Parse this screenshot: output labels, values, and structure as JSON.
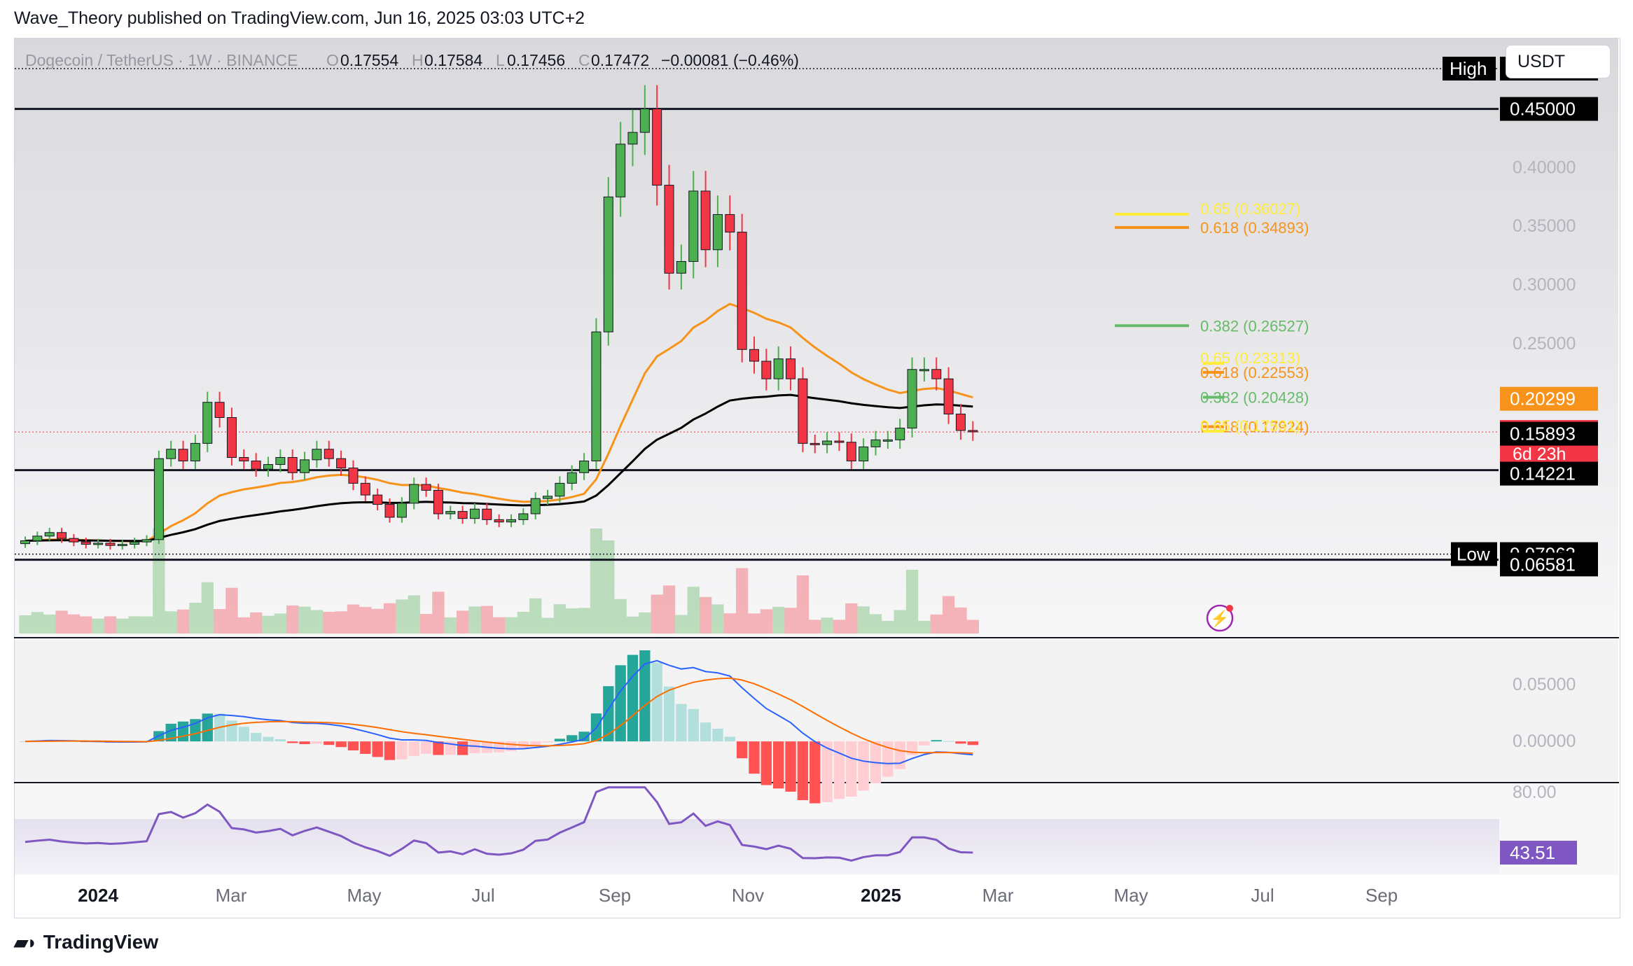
{
  "header": {
    "publisher": "Wave_Theory published on TradingView.com, Jun 16, 2025 03:03 UTC+2"
  },
  "brand": {
    "name": "TradingView",
    "icon": "tradingview-logo-icon"
  },
  "toolbar": {
    "currency": "USDT"
  },
  "legend": {
    "symbol": "Dogecoin / TetherUS · 1W · BINANCE",
    "o_label": "O",
    "o": "0.17554",
    "h_label": "H",
    "h": "0.17584",
    "l_label": "L",
    "l": "0.17456",
    "c_label": "C",
    "c": "0.17472",
    "change": "−0.00081 (−0.46%)"
  },
  "colors": {
    "up": "#4caf50",
    "down": "#f23645",
    "ema50": "#f7931a",
    "ema200": "#000000",
    "fib_gold": "#ffeb3b",
    "fib_orange": "#f7931a",
    "fib_green": "#66bb6a",
    "macd": "#2962ff",
    "signal": "#ff6d00",
    "rsi": "#7e57c2"
  },
  "chart_data": [
    {
      "type": "candlestick",
      "title": "",
      "ylim": [
        0.0,
        0.51
      ],
      "y_tick_labels": [
        "0.25000",
        "0.30000",
        "0.35000",
        "0.40000"
      ],
      "x_tick_labels": [
        "2024",
        "Mar",
        "May",
        "Jul",
        "Sep",
        "Nov",
        "2025",
        "Mar",
        "May",
        "Jul",
        "Sep"
      ],
      "weekly_close": [
        0.082,
        0.086,
        0.089,
        0.084,
        0.081,
        0.079,
        0.08,
        0.078,
        0.079,
        0.081,
        0.083,
        0.152,
        0.16,
        0.15,
        0.165,
        0.2,
        0.187,
        0.153,
        0.15,
        0.143,
        0.147,
        0.153,
        0.14,
        0.151,
        0.16,
        0.152,
        0.144,
        0.131,
        0.121,
        0.113,
        0.102,
        0.114,
        0.13,
        0.125,
        0.105,
        0.107,
        0.101,
        0.109,
        0.1,
        0.098,
        0.1,
        0.105,
        0.118,
        0.12,
        0.131,
        0.14,
        0.15,
        0.26,
        0.375,
        0.42,
        0.43,
        0.45,
        0.385,
        0.31,
        0.32,
        0.38,
        0.33,
        0.36,
        0.345,
        0.245,
        0.235,
        0.22,
        0.237,
        0.22,
        0.165,
        0.164,
        0.167,
        0.166,
        0.15,
        0.162,
        0.168,
        0.168,
        0.178,
        0.228,
        0.228,
        0.22,
        0.19,
        0.176,
        0.175
      ],
      "ma_values": {
        "ema50": "0.20299",
        "ema200": "0.15893"
      },
      "price_labels": {
        "high_tag": "High",
        "high": "0.48434",
        "resistance": "0.45000",
        "current": "0.17472",
        "countdown": "6d 23h",
        "support": "0.14221",
        "low_tag": "Low",
        "low": "0.07063",
        "low2": "0.06581"
      },
      "fib_levels": [
        {
          "label": "0.65 (0.36027)",
          "value": 0.36027,
          "color": "#ffeb3b"
        },
        {
          "label": "0.618 (0.34893)",
          "value": 0.34893,
          "color": "#f7931a"
        },
        {
          "label": "0.382 (0.26527)",
          "value": 0.26527,
          "color": "#66bb6a"
        },
        {
          "label": "0.65 (0.23313)",
          "value": 0.23313,
          "color": "#ffeb3b"
        },
        {
          "label": "0.618 (0.22553)",
          "value": 0.22553,
          "color": "#f7931a"
        },
        {
          "label": "0.382 (0.20428)",
          "value": 0.20428,
          "color": "#66bb6a"
        },
        {
          "label": "0.618 (0.17924)",
          "value": 0.17924,
          "color": "#f7931a"
        },
        {
          "label": "0.65 (0.17531)",
          "value": 0.17531,
          "color": "#ffeb3b"
        }
      ],
      "horizontal_levels": [
        0.48434,
        0.45,
        0.14221,
        0.07063,
        0.06581
      ]
    },
    {
      "type": "bar",
      "title": "",
      "y_tick_labels": [
        "0.05000",
        "0.00000"
      ],
      "ylim": [
        -0.035,
        0.09
      ]
    },
    {
      "type": "line",
      "title": "",
      "y_tick_labels": [
        "80.00"
      ],
      "ylim": [
        30,
        85
      ],
      "current_value": "43.51"
    }
  ]
}
